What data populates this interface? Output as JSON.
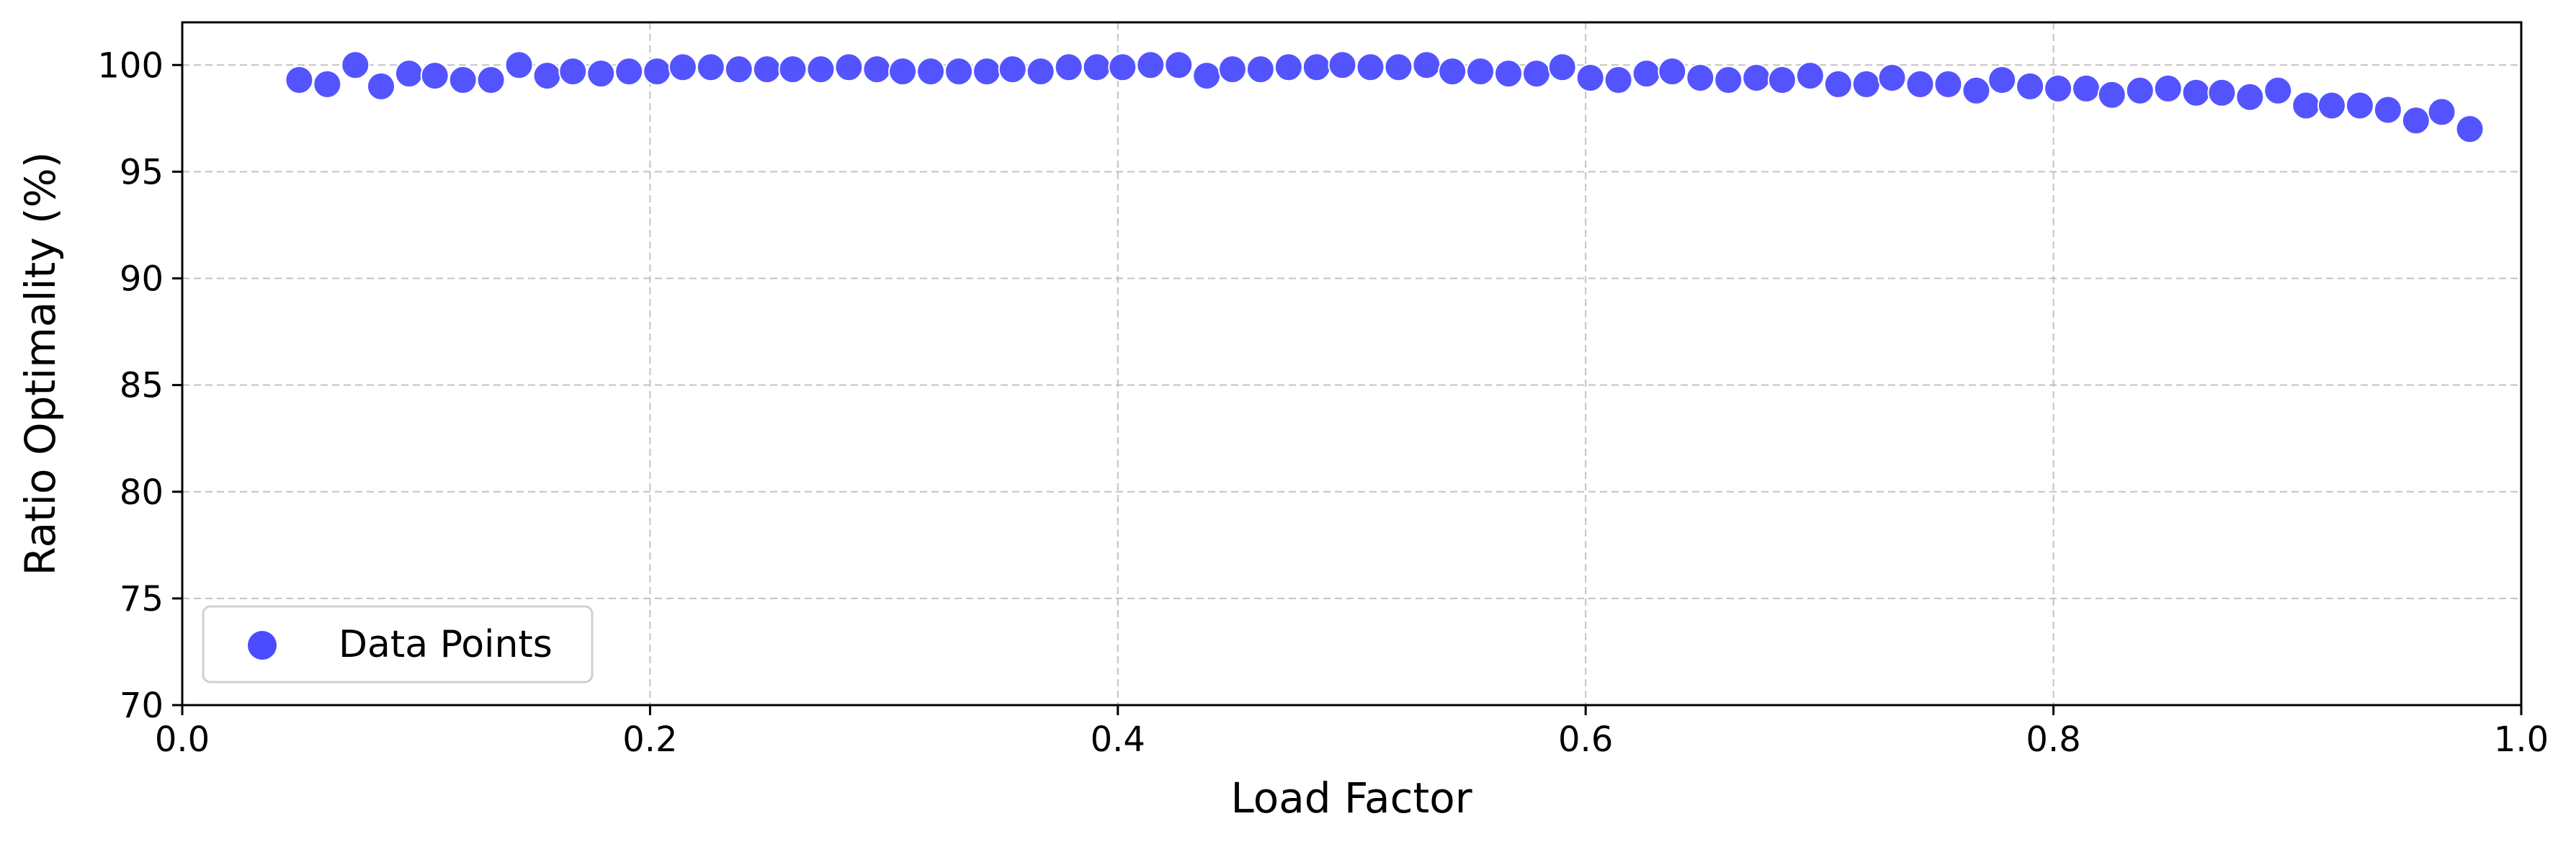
{
  "chart_data": {
    "type": "scatter",
    "xlabel": "Load Factor",
    "ylabel": "Ratio Optimality (%)",
    "xlim": [
      0.0,
      1.0
    ],
    "ylim": [
      70,
      102
    ],
    "xticks": [
      "0.0",
      "0.2",
      "0.4",
      "0.6",
      "0.8",
      "1.0"
    ],
    "yticks": [
      "70",
      "75",
      "80",
      "85",
      "90",
      "95",
      "100"
    ],
    "grid": true,
    "legend_position": "lower-left",
    "series": [
      {
        "name": "Data Points",
        "color": "#4b4bff",
        "x": [
          0.05,
          0.062,
          0.074,
          0.085,
          0.097,
          0.108,
          0.12,
          0.132,
          0.144,
          0.156,
          0.167,
          0.179,
          0.191,
          0.203,
          0.214,
          0.226,
          0.238,
          0.25,
          0.261,
          0.273,
          0.285,
          0.297,
          0.308,
          0.32,
          0.332,
          0.344,
          0.355,
          0.367,
          0.379,
          0.391,
          0.402,
          0.414,
          0.426,
          0.438,
          0.449,
          0.461,
          0.473,
          0.485,
          0.496,
          0.508,
          0.52,
          0.532,
          0.543,
          0.555,
          0.567,
          0.579,
          0.59,
          0.602,
          0.614,
          0.626,
          0.637,
          0.649,
          0.661,
          0.673,
          0.684,
          0.696,
          0.708,
          0.72,
          0.731,
          0.743,
          0.755,
          0.767,
          0.778,
          0.79,
          0.802,
          0.814,
          0.825,
          0.837,
          0.849,
          0.861,
          0.872,
          0.884,
          0.896,
          0.908,
          0.919,
          0.931,
          0.943,
          0.955,
          0.966,
          0.978
        ],
        "y": [
          99.3,
          99.1,
          100.0,
          99.0,
          99.6,
          99.5,
          99.3,
          99.3,
          100.0,
          99.5,
          99.7,
          99.6,
          99.7,
          99.7,
          99.9,
          99.9,
          99.8,
          99.8,
          99.8,
          99.8,
          99.9,
          99.8,
          99.7,
          99.7,
          99.7,
          99.7,
          99.8,
          99.7,
          99.9,
          99.9,
          99.9,
          100.0,
          100.0,
          99.5,
          99.8,
          99.8,
          99.9,
          99.9,
          100.0,
          99.9,
          99.9,
          100.0,
          99.7,
          99.7,
          99.6,
          99.6,
          99.9,
          99.4,
          99.3,
          99.6,
          99.7,
          99.4,
          99.3,
          99.4,
          99.3,
          99.5,
          99.1,
          99.1,
          99.4,
          99.1,
          99.1,
          98.8,
          99.3,
          99.0,
          98.9,
          98.9,
          98.6,
          98.8,
          98.9,
          98.7,
          98.7,
          98.5,
          98.8,
          98.1,
          98.1,
          98.1,
          97.9,
          97.4,
          97.8,
          97.0
        ]
      }
    ]
  }
}
